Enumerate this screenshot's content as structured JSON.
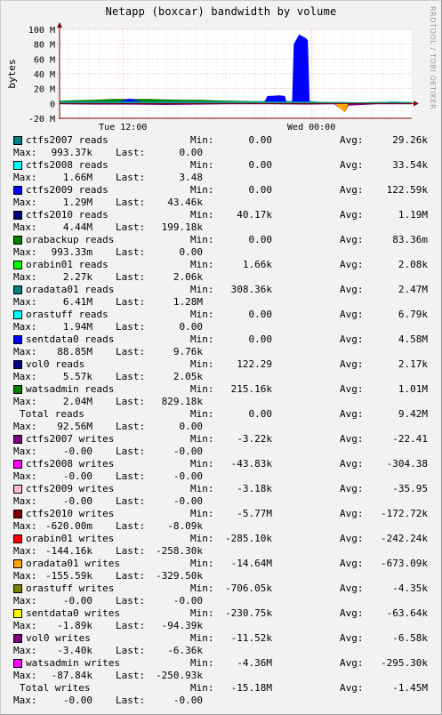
{
  "chart_data": {
    "type": "area",
    "title": "Netapp (boxcar) bandwidth by volume",
    "ylabel": "bytes",
    "watermark": "RRDTOOL / TOBI OETIKER",
    "ylim": [
      -20000000,
      100000000
    ],
    "y_ticks": [
      {
        "value": 100000000,
        "label": "100 M"
      },
      {
        "value": 80000000,
        "label": "80 M"
      },
      {
        "value": 60000000,
        "label": "60 M"
      },
      {
        "value": 40000000,
        "label": "40 M"
      },
      {
        "value": 20000000,
        "label": "20 M"
      },
      {
        "value": 0,
        "label": "0"
      },
      {
        "value": -20000000,
        "label": "-20 M"
      }
    ],
    "x_ticks": [
      {
        "value": 0.18,
        "label": "Tue 12:00"
      },
      {
        "value": 0.715,
        "label": "Wed 00:00"
      }
    ],
    "grid": true,
    "reads_area": [
      [
        0.0,
        3.5
      ],
      [
        0.02,
        4
      ],
      [
        0.05,
        4.5
      ],
      [
        0.1,
        5
      ],
      [
        0.15,
        6
      ],
      [
        0.2,
        6.5
      ],
      [
        0.25,
        6
      ],
      [
        0.3,
        5.5
      ],
      [
        0.35,
        5
      ],
      [
        0.4,
        5
      ],
      [
        0.45,
        4
      ],
      [
        0.5,
        3.5
      ],
      [
        0.55,
        3
      ],
      [
        0.58,
        3
      ],
      [
        0.59,
        10
      ],
      [
        0.625,
        11
      ],
      [
        0.64,
        10
      ],
      [
        0.645,
        3
      ],
      [
        0.66,
        3
      ],
      [
        0.665,
        80
      ],
      [
        0.68,
        93
      ],
      [
        0.7,
        88
      ],
      [
        0.705,
        85
      ],
      [
        0.71,
        3
      ],
      [
        0.75,
        2
      ],
      [
        0.8,
        2
      ],
      [
        0.85,
        1.5
      ],
      [
        0.9,
        2
      ],
      [
        0.95,
        2.5
      ],
      [
        1.0,
        2
      ]
    ],
    "writes_area": [
      [
        0.0,
        -1
      ],
      [
        0.1,
        -1.5
      ],
      [
        0.2,
        -1.5
      ],
      [
        0.3,
        -2
      ],
      [
        0.4,
        -1.5
      ],
      [
        0.5,
        -1
      ],
      [
        0.6,
        -1
      ],
      [
        0.7,
        -1.5
      ],
      [
        0.78,
        -1
      ],
      [
        0.8,
        -8
      ],
      [
        0.81,
        -12
      ],
      [
        0.82,
        -3
      ],
      [
        0.9,
        -1
      ],
      [
        1.0,
        -1
      ]
    ],
    "legend": [
      {
        "name": "ctfs2007 reads",
        "color": "#008080",
        "min": "0.00",
        "avg": "29.26k",
        "max": "993.37k",
        "last": "0.00"
      },
      {
        "name": "ctfs2008 reads",
        "color": "#00ffff",
        "min": "0.00",
        "avg": "33.54k",
        "max": "1.66M",
        "last": "3.48"
      },
      {
        "name": "ctfs2009 reads",
        "color": "#0000ff",
        "min": "0.00",
        "avg": "122.59k",
        "max": "1.29M",
        "last": "43.46k"
      },
      {
        "name": "ctfs2010 reads",
        "color": "#000080",
        "min": "40.17k",
        "avg": "1.19M",
        "max": "4.44M",
        "last": "199.18k"
      },
      {
        "name": "orabackup reads",
        "color": "#008000",
        "min": "0.00",
        "avg": "83.36m",
        "max": "993.33m",
        "last": "0.00"
      },
      {
        "name": "orabin01 reads",
        "color": "#00ff00",
        "min": "1.66k",
        "avg": "2.08k",
        "max": "2.27k",
        "last": "2.06k"
      },
      {
        "name": "oradata01 reads",
        "color": "#008080",
        "min": "308.36k",
        "avg": "2.47M",
        "max": "6.41M",
        "last": "1.28M"
      },
      {
        "name": "orastuff reads",
        "color": "#00ffff",
        "min": "0.00",
        "avg": "6.79k",
        "max": "1.94M",
        "last": "0.00"
      },
      {
        "name": "sentdata0 reads",
        "color": "#0000ff",
        "min": "0.00",
        "avg": "4.58M",
        "max": "88.85M",
        "last": "9.76k"
      },
      {
        "name": "vol0 reads",
        "color": "#000080",
        "min": "122.29",
        "avg": "2.17k",
        "max": "5.57k",
        "last": "2.05k"
      },
      {
        "name": "watsadmin reads",
        "color": "#008000",
        "min": "215.16k",
        "avg": "1.01M",
        "max": "2.04M",
        "last": "829.18k"
      },
      {
        "name": "Total reads",
        "color": "",
        "min": "0.00",
        "avg": "9.42M",
        "max": "92.56M",
        "last": "0.00"
      },
      {
        "name": "ctfs2007 writes",
        "color": "#800080",
        "min": "-3.22k",
        "avg": "-22.41",
        "max": "-0.00",
        "last": "-0.00"
      },
      {
        "name": "ctfs2008 writes",
        "color": "#ff00ff",
        "min": "-43.83k",
        "avg": "-304.38",
        "max": "-0.00",
        "last": "-0.00"
      },
      {
        "name": "ctfs2009 writes",
        "color": "#ffc0cb",
        "min": "-3.18k",
        "avg": "-35.95",
        "max": "-0.00",
        "last": "-0.00"
      },
      {
        "name": "ctfs2010 writes",
        "color": "#800000",
        "min": "-5.77M",
        "avg": "-172.72k",
        "max": "-620.00m",
        "last": "-8.09k"
      },
      {
        "name": "orabin01 writes",
        "color": "#ff0000",
        "min": "-285.10k",
        "avg": "-242.24k",
        "max": "-144.16k",
        "last": "-258.30k"
      },
      {
        "name": "oradata01 writes",
        "color": "#ffa500",
        "min": "-14.64M",
        "avg": "-673.09k",
        "max": "-155.59k",
        "last": "-329.50k"
      },
      {
        "name": "orastuff writes",
        "color": "#808000",
        "min": "-706.05k",
        "avg": "-4.35k",
        "max": "-0.00",
        "last": "-0.00"
      },
      {
        "name": "sentdata0 writes",
        "color": "#ffff00",
        "min": "-230.75k",
        "avg": "-63.64k",
        "max": "-1.89k",
        "last": "-94.39k"
      },
      {
        "name": "vol0 writes",
        "color": "#800080",
        "min": "-11.52k",
        "avg": "-6.58k",
        "max": "-3.40k",
        "last": "-6.36k"
      },
      {
        "name": "watsadmin writes",
        "color": "#ff00ff",
        "min": "-4.36M",
        "avg": "-295.30k",
        "max": "-87.84k",
        "last": "-250.93k"
      },
      {
        "name": "Total writes",
        "color": "",
        "min": "-15.18M",
        "avg": "-1.45M",
        "max": "-0.00",
        "last": "-0.00"
      }
    ]
  },
  "labels": {
    "min": "Min:",
    "avg": "Avg:",
    "max": "Max:",
    "last": "Last:"
  }
}
